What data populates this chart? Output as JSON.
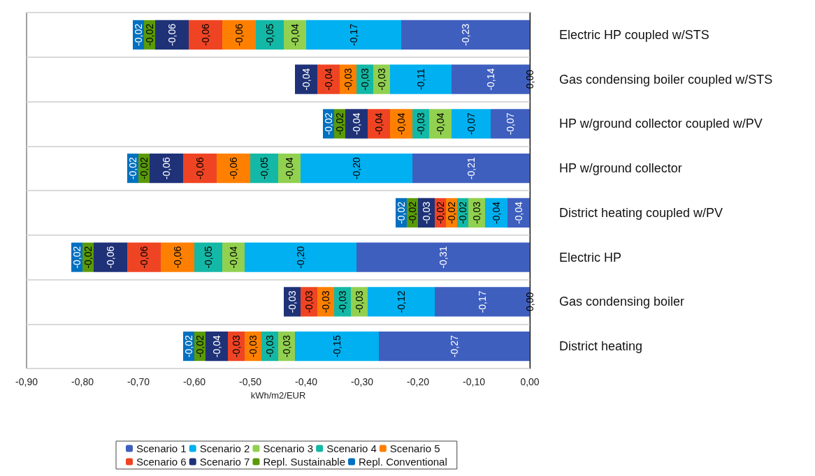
{
  "chart_data": {
    "type": "bar",
    "orientation": "horizontal",
    "stacked": true,
    "categories": [
      "Electric HP coupled w/STS",
      "Gas condensing boiler coupled w/STS",
      "HP w/ground collector coupled w/PV",
      "HP w/ground collector",
      "District heating coupled w/PV",
      "Electric HP",
      "Gas condensing boiler",
      "District heating"
    ],
    "series": [
      {
        "name": "Scenario 1",
        "color": "#3f5fbf",
        "values": [
          -0.23,
          -0.14,
          -0.07,
          -0.21,
          -0.04,
          -0.31,
          -0.17,
          -0.27
        ],
        "value_labels": [
          "-0,23",
          "-0,14",
          "-0,07",
          "-0,21",
          "-0,04",
          "-0,31",
          "-0,17",
          "-0,27"
        ]
      },
      {
        "name": "Scenario 2",
        "color": "#00b0f0",
        "values": [
          -0.17,
          -0.11,
          -0.07,
          -0.2,
          -0.04,
          -0.2,
          -0.12,
          -0.15
        ],
        "value_labels": [
          "-0,17",
          "-0,11",
          "-0,07",
          "-0,20",
          "-0,04",
          "-0,20",
          "-0,12",
          "-0,15"
        ]
      },
      {
        "name": "Scenario 3",
        "color": "#92d050",
        "values": [
          -0.04,
          -0.03,
          -0.04,
          -0.04,
          -0.03,
          -0.04,
          -0.03,
          -0.03
        ],
        "value_labels": [
          "-0,04",
          "-0,03",
          "-0,04",
          "-0,04",
          "-0,03",
          "-0,04",
          "-0,03",
          "-0,03"
        ]
      },
      {
        "name": "Scenario 4",
        "color": "#14b8a6",
        "values": [
          -0.05,
          -0.03,
          -0.03,
          -0.05,
          -0.02,
          -0.05,
          -0.03,
          -0.03
        ],
        "value_labels": [
          "-0,05",
          "-0,03",
          "-0,03",
          "-0,05",
          "-0,02",
          "-0,05",
          "-0,03",
          "-0,03"
        ]
      },
      {
        "name": "Scenario 5",
        "color": "#ff8000",
        "values": [
          -0.06,
          -0.03,
          -0.04,
          -0.06,
          -0.02,
          -0.06,
          -0.03,
          -0.03
        ],
        "value_labels": [
          "-0,06",
          "-0,03",
          "-0,04",
          "-0,06",
          "-0,02",
          "-0,06",
          "-0,03",
          "-0,03"
        ]
      },
      {
        "name": "Scenario 6",
        "color": "#ef4423",
        "values": [
          -0.06,
          -0.04,
          -0.04,
          -0.06,
          -0.02,
          -0.06,
          -0.03,
          -0.03
        ],
        "value_labels": [
          "-0,06",
          "-0,04",
          "-0,04",
          "-0,06",
          "-0,02",
          "-0,06",
          "-0,03",
          "-0,03"
        ]
      },
      {
        "name": "Scenario 7",
        "color": "#1f3278",
        "values": [
          -0.06,
          -0.04,
          -0.04,
          -0.06,
          -0.03,
          -0.06,
          -0.03,
          -0.04
        ],
        "value_labels": [
          "-0,06",
          "-0,04",
          "-0,04",
          "-0,06",
          "-0,03",
          "-0,06",
          "-0,03",
          "-0,04"
        ]
      },
      {
        "name": "Repl. Sustainable",
        "color": "#5a9a08",
        "values": [
          -0.02,
          0,
          -0.02,
          -0.02,
          -0.02,
          -0.02,
          0,
          -0.02
        ],
        "value_labels": [
          "-0,02",
          null,
          "-0,02",
          "-0,02",
          "-0,02",
          "-0,02",
          null,
          "-0,02"
        ]
      },
      {
        "name": "Repl. Conventional",
        "color": "#0070c0",
        "values": [
          -0.02,
          0,
          -0.02,
          -0.02,
          -0.02,
          -0.02,
          0,
          -0.02
        ],
        "value_labels": [
          "-0,02",
          "0,00",
          "-0,02",
          "-0,02",
          "-0,02",
          "-0,02",
          "0,00",
          "-0,02"
        ]
      }
    ],
    "xlabel": "kWh/m2/EUR",
    "xlim": [
      -0.9,
      0
    ],
    "xticks": [
      {
        "value": -0.9,
        "label": "-0,90"
      },
      {
        "value": -0.8,
        "label": "-0,80"
      },
      {
        "value": -0.7,
        "label": "-0,70"
      },
      {
        "value": -0.6,
        "label": "-0,60"
      },
      {
        "value": -0.5,
        "label": "-0,50"
      },
      {
        "value": -0.4,
        "label": "-0,40"
      },
      {
        "value": -0.3,
        "label": "-0,30"
      },
      {
        "value": -0.2,
        "label": "-0,20"
      },
      {
        "value": -0.1,
        "label": "-0,10"
      },
      {
        "value": 0,
        "label": "0,00"
      }
    ],
    "grid": "y",
    "legend": "bottom"
  }
}
